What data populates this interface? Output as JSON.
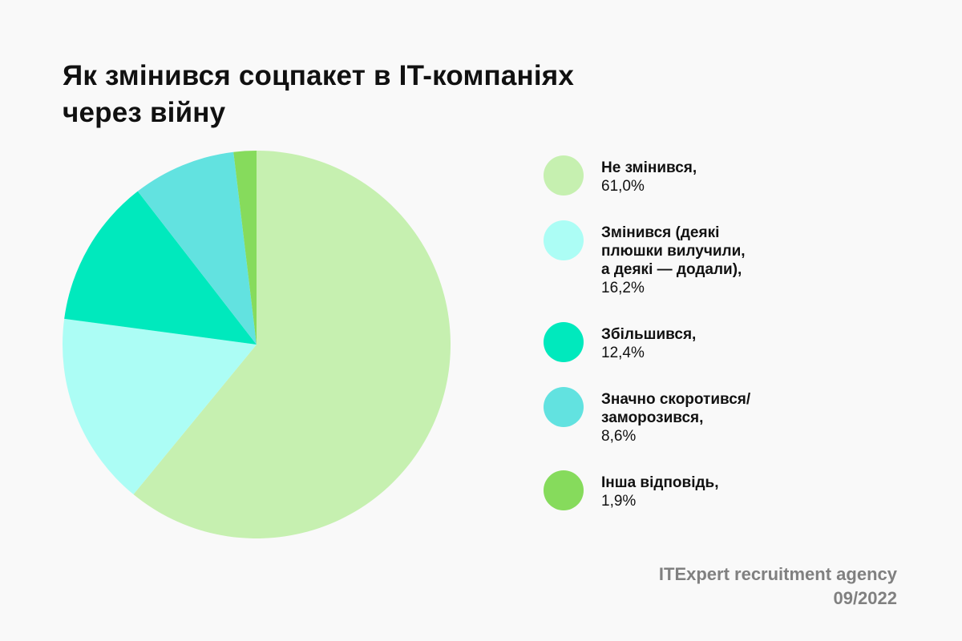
{
  "title": "Як змінився соцпакет в IT-компаніях\nчерез війну",
  "chart_data": {
    "type": "pie",
    "title": "Як змінився соцпакет в IT-компаніях через війну",
    "categories": [
      "Не змінився",
      "Змінився (деякі плюшки вилучили, а деякі — додали)",
      "Збільшився",
      "Значно скоротився/ заморозився",
      "Інша відповідь"
    ],
    "values": [
      61.0,
      16.2,
      12.4,
      8.6,
      1.9
    ],
    "value_labels": [
      "61,0%",
      "16,2%",
      "12,4%",
      "8,6%",
      "1,9%"
    ],
    "colors": [
      "#c6f0b0",
      "#acfdf5",
      "#00e9bd",
      "#62e2e0",
      "#86db5c"
    ],
    "start_angle_deg": 0,
    "direction": "clockwise",
    "legend": "right"
  },
  "legend": [
    {
      "label": "Не змінився,",
      "value": "61,0%"
    },
    {
      "label": "Змінився (деякі\nплюшки вилучили,\nа деякі — додали),",
      "value": "16,2%"
    },
    {
      "label": "Збільшився,",
      "value": "12,4%"
    },
    {
      "label": "Значно скоротився/\nзаморозився,",
      "value": "8,6%"
    },
    {
      "label": "Інша відповідь,",
      "value": "1,9%"
    }
  ],
  "source": {
    "agency": "ITExpert recruitment agency",
    "date": "09/2022"
  }
}
